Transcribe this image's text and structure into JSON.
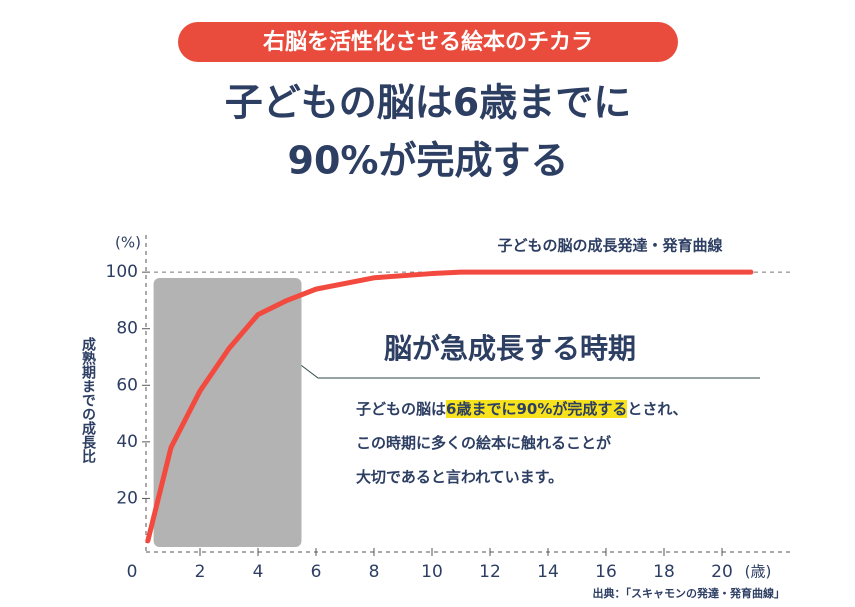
{
  "badge": "右脳を活性化させる絵本のチカラ",
  "title_lines": [
    "子どもの脳は6歳までに",
    "90%が完成する"
  ],
  "chart_data": {
    "type": "line",
    "series_label": "子どもの脳の成長発達・発育曲線",
    "y_unit": "(%)",
    "x_unit": "(歳)",
    "y_axis_label": "成熟期までの成長比",
    "x": [
      0.2,
      1,
      2,
      3,
      4,
      5,
      6,
      8,
      10,
      11,
      21
    ],
    "series": [
      {
        "color": "#f24a3e",
        "values": [
          5,
          38,
          58,
          73,
          85,
          90,
          94,
          98,
          99.5,
          100,
          100
        ]
      }
    ],
    "highlight_range": [
      0.4,
      5.5
    ],
    "xlim": [
      0,
      22
    ],
    "ylim": [
      0,
      105
    ],
    "xticks": [
      0,
      2,
      4,
      6,
      8,
      10,
      12,
      14,
      16,
      18,
      20
    ],
    "yticks": [
      20,
      40,
      60,
      80,
      100
    ],
    "annotation": {
      "title": "脳が急成長する時期",
      "lines": [
        [
          "子どもの脳は",
          "6歳までに90%が完成する",
          "とされ、"
        ],
        [
          "この時期に多くの絵本に触れることが"
        ],
        [
          "大切であると言われています。"
        ]
      ]
    },
    "source": "出典：「スキャモンの発達・発育曲線」"
  }
}
